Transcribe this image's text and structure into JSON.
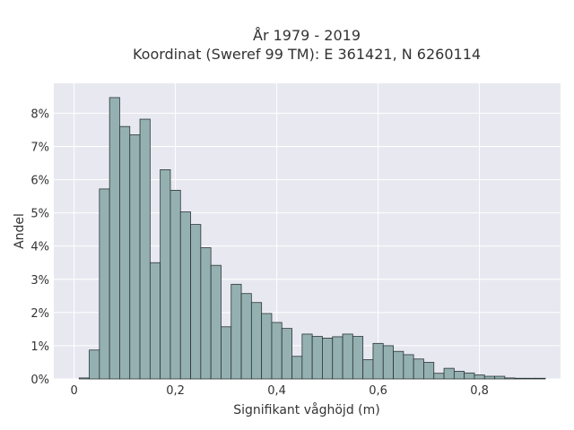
{
  "chart_data": {
    "type": "bar",
    "title_lines": [
      "År 1979 - 2019",
      "Koordinat (Sweref 99 TM): E 361421, N 6260114"
    ],
    "xlabel": "Signifikant våghöjd (m)",
    "ylabel": "Andel",
    "xlim": [
      -0.04,
      0.96
    ],
    "ylim": [
      0,
      8.9
    ],
    "x_ticks": [
      0,
      0.2,
      0.4,
      0.6,
      0.8
    ],
    "x_tick_labels": [
      "0",
      "0,2",
      "0,4",
      "0,6",
      "0,8"
    ],
    "y_ticks": [
      0,
      1,
      2,
      3,
      4,
      5,
      6,
      7,
      8
    ],
    "y_tick_labels": [
      "0%",
      "1%",
      "2%",
      "3%",
      "4%",
      "5%",
      "6%",
      "7%",
      "8%"
    ],
    "bin_start": 0.01,
    "bin_width": 0.02,
    "values": [
      0.03,
      0.87,
      5.72,
      8.47,
      7.6,
      7.35,
      7.82,
      3.5,
      6.3,
      5.68,
      5.03,
      4.65,
      3.95,
      3.42,
      1.57,
      2.85,
      2.57,
      2.3,
      1.97,
      1.7,
      1.52,
      0.68,
      1.35,
      1.28,
      1.23,
      1.27,
      1.35,
      1.28,
      0.58,
      1.07,
      1.0,
      0.83,
      0.73,
      0.6,
      0.5,
      0.17,
      0.32,
      0.23,
      0.18,
      0.12,
      0.08,
      0.08,
      0.03,
      0.02,
      0.02,
      0.02
    ],
    "grid": true,
    "colors": {
      "bar_fill": "#95b0b0",
      "bar_edge": "#2a3636",
      "plot_bg": "#e8e8f0",
      "grid": "#ffffff"
    }
  }
}
